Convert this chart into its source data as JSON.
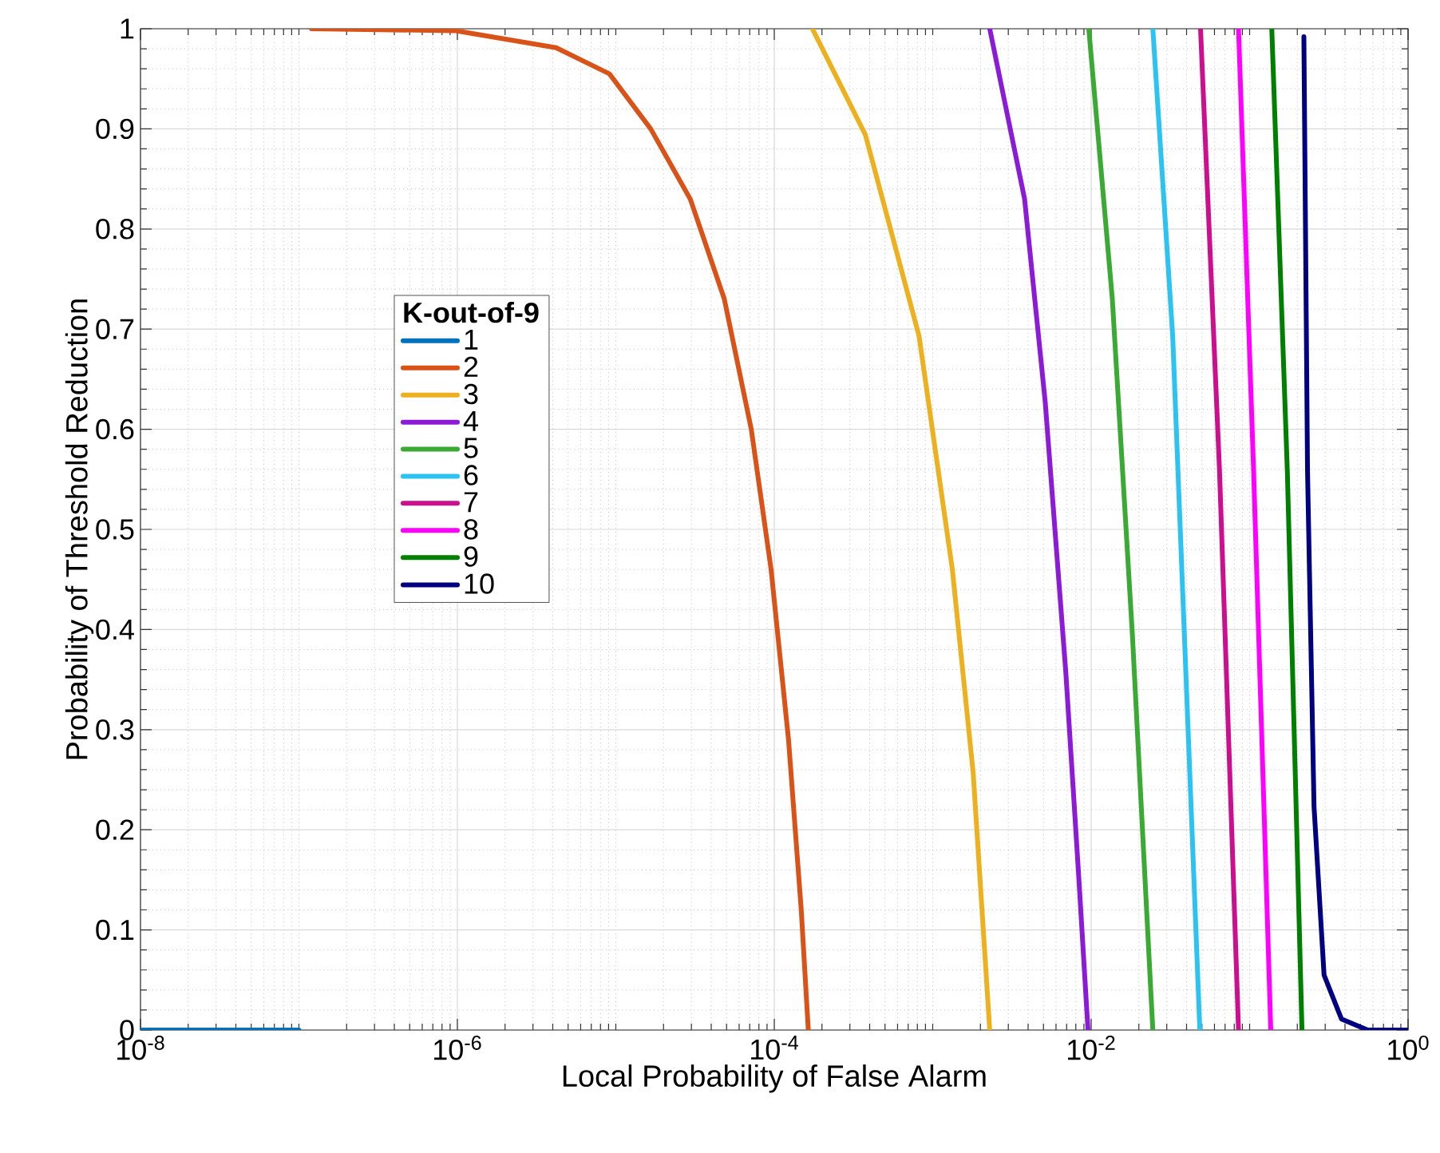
{
  "chart_data": {
    "type": "line",
    "xlabel": "Local Probability of False Alarm",
    "ylabel": "Probability of Threshold Reduction",
    "legend_title": "K-out-of-9",
    "log": "x",
    "grid": true,
    "legend": "left",
    "line_style": "solid",
    "xlim": [
      1e-08,
      1
    ],
    "ylim": [
      0,
      1
    ],
    "xticks": [
      {
        "value": 1e-08,
        "label": "10$^{-8}$"
      },
      {
        "value": 1e-06,
        "label": "10$^{-6}$"
      },
      {
        "value": 0.0001,
        "label": "10$^{-4}$"
      },
      {
        "value": 0.01,
        "label": "10$^{-2}$"
      },
      {
        "value": 1,
        "label": "10$^{0}$"
      }
    ],
    "yticks": [
      0,
      0.1,
      0.2,
      0.3,
      0.4,
      0.5,
      0.6,
      0.7,
      0.8,
      0.9,
      1
    ],
    "series": [
      {
        "name": "1",
        "color": "#0072bd",
        "x": [
          1e-08,
          1e-07
        ],
        "values": [
          0,
          0
        ]
      },
      {
        "name": "2",
        "color": "#d95319",
        "x": [
          1.2e-07,
          9.8e-07,
          4.2e-06,
          9.1e-06,
          1.66e-05,
          2.95e-05,
          4.84e-05,
          7.16e-05,
          9.55e-05,
          0.000123,
          0.000148,
          0.000164
        ],
        "values": [
          1,
          0.998,
          0.981,
          0.955,
          0.9,
          0.83,
          0.73,
          0.6,
          0.46,
          0.29,
          0.12,
          0
        ]
      },
      {
        "name": "3",
        "color": "#edb120",
        "x": [
          0.000174,
          0.000376,
          0.00082,
          0.00133,
          0.0018,
          0.00229
        ],
        "values": [
          1,
          0.894,
          0.693,
          0.46,
          0.257,
          0
        ]
      },
      {
        "name": "4",
        "color": "#8b1bd6",
        "x": [
          0.00229,
          0.0038,
          0.00513,
          0.00692,
          0.00832,
          0.00955
        ],
        "values": [
          1,
          0.83,
          0.627,
          0.357,
          0.157,
          0
        ]
      },
      {
        "name": "5",
        "color": "#3aaa35",
        "x": [
          0.00966,
          0.0136,
          0.0182,
          0.0245
        ],
        "values": [
          1,
          0.73,
          0.395,
          0
        ]
      },
      {
        "name": "6",
        "color": "#2dc3f0",
        "x": [
          0.0245,
          0.0327,
          0.0485
        ],
        "values": [
          1,
          0.693,
          0
        ]
      },
      {
        "name": "7",
        "color": "#cc0f8f",
        "x": [
          0.049,
          0.0646,
          0.0851
        ],
        "values": [
          1,
          0.558,
          0
        ]
      },
      {
        "name": "8",
        "color": "#ff00ff",
        "x": [
          0.0851,
          0.106,
          0.136
        ],
        "values": [
          1,
          0.558,
          0
        ]
      },
      {
        "name": "9",
        "color": "#008000",
        "x": [
          0.138,
          0.173,
          0.214
        ],
        "values": [
          1,
          0.558,
          0
        ]
      },
      {
        "name": "10",
        "color": "#000080",
        "x": [
          0.22,
          0.232,
          0.255,
          0.295,
          0.38,
          0.557,
          1
        ],
        "values": [
          0.992,
          0.558,
          0.223,
          0.055,
          0.011,
          0,
          0
        ]
      }
    ]
  }
}
